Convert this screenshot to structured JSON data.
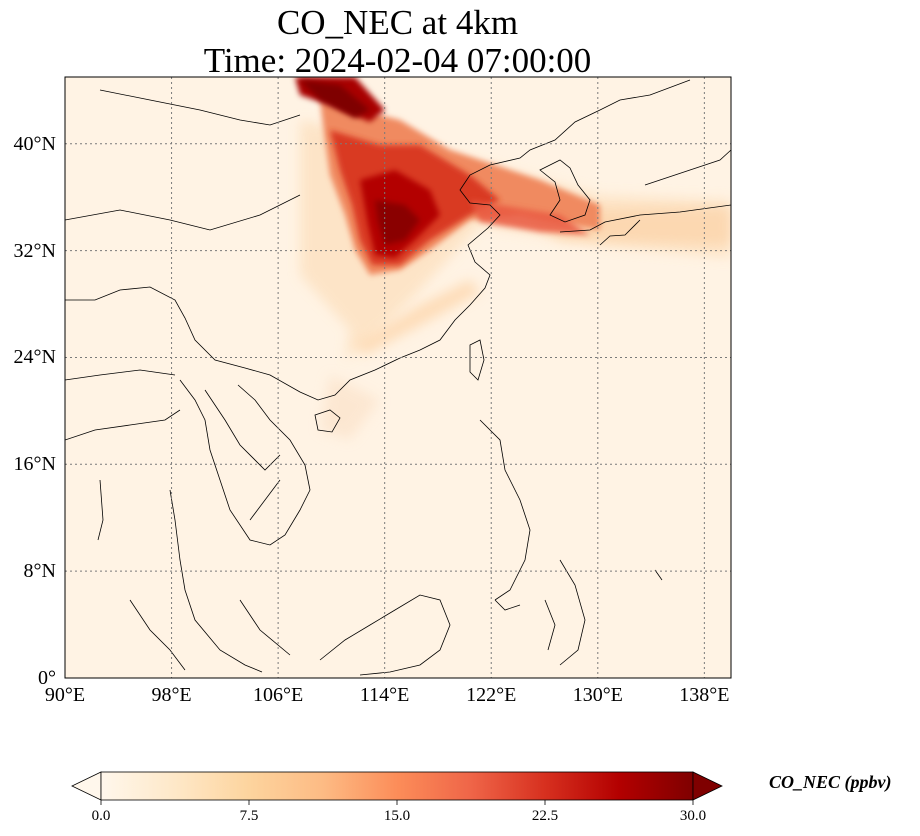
{
  "title": {
    "line1": "CO_NEC at 4km",
    "line2": "Time: 2024-02-04 07:00:00"
  },
  "map": {
    "projection": "PlateCarree",
    "extent": {
      "lon": [
        90,
        140
      ],
      "lat": [
        0,
        45
      ]
    },
    "gridlines": {
      "style": "dotted",
      "color": "#7a7a7a"
    },
    "lat_ticks": [
      {
        "value": 40,
        "label": "40°N"
      },
      {
        "value": 32,
        "label": "32°N"
      },
      {
        "value": 24,
        "label": "24°N"
      },
      {
        "value": 16,
        "label": "16°N"
      },
      {
        "value": 8,
        "label": "8°N"
      },
      {
        "value": 0,
        "label": "0°"
      }
    ],
    "lon_ticks": [
      {
        "value": 90,
        "label": "90°E"
      },
      {
        "value": 98,
        "label": "98°E"
      },
      {
        "value": 106,
        "label": "106°E"
      },
      {
        "value": 114,
        "label": "114°E"
      },
      {
        "value": 122,
        "label": "122°E"
      },
      {
        "value": 130,
        "label": "130°E"
      },
      {
        "value": 138,
        "label": "138°E"
      }
    ],
    "background_color": "#fff3e4",
    "coastline_color": "#000000"
  },
  "colorbar": {
    "label": "CO_NEC (ppbv)",
    "cmap": "OrRd",
    "range": [
      0,
      30
    ],
    "extend": "both",
    "ticks": [
      {
        "value": 0,
        "label": "0.0"
      },
      {
        "value": 7.5,
        "label": "7.5"
      },
      {
        "value": 15,
        "label": "15.0"
      },
      {
        "value": 22.5,
        "label": "22.5"
      },
      {
        "value": 30,
        "label": "30.0"
      }
    ],
    "colors": [
      "#fff7ec",
      "#fee8c8",
      "#fdd49e",
      "#fdbb84",
      "#fc8d59",
      "#ef6548",
      "#d7301f",
      "#b30000",
      "#7f0000"
    ]
  }
}
